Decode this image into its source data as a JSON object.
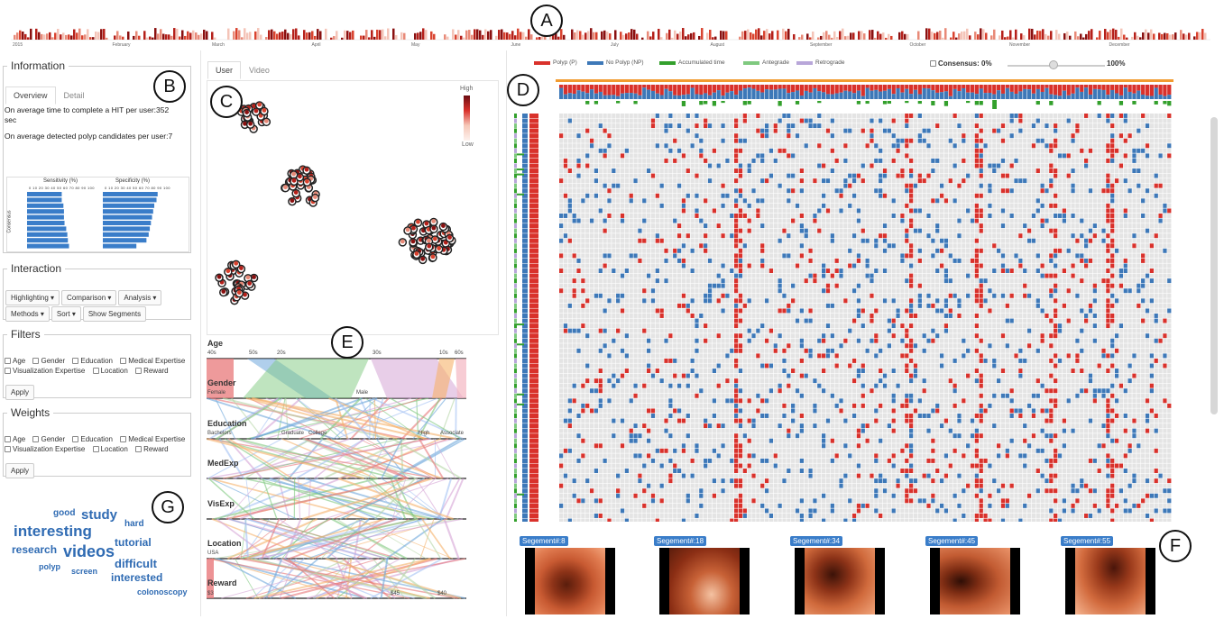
{
  "callouts": [
    "A",
    "B",
    "C",
    "D",
    "E",
    "F",
    "G"
  ],
  "timeline": {
    "months": [
      "2015",
      "February",
      "March",
      "April",
      "May",
      "June",
      "July",
      "August",
      "September",
      "October",
      "November",
      "December"
    ]
  },
  "information": {
    "legend": "Information",
    "tabs": [
      "Overview",
      "Detail"
    ],
    "line1": "On average time to complete a HIT per user:352",
    "line1b": "sec",
    "line2": "On average detected polyp candidates per user:7",
    "sensitivity_title": "Sensitivity (%)",
    "specificity_title": "Specificity (%)",
    "axis_ticks": "0 10 20 30 40 50 60 70 80 90 100",
    "consensus_label": "Consensus",
    "chart_data": {
      "type": "bar",
      "series": [
        {
          "name": "Sensitivity (%)",
          "values": [
            62,
            62,
            65,
            66,
            66,
            67,
            70,
            72,
            73,
            75
          ]
        },
        {
          "name": "Specificity (%)",
          "values": [
            98,
            96,
            92,
            90,
            88,
            86,
            84,
            82,
            78,
            60
          ]
        }
      ]
    }
  },
  "interaction": {
    "legend": "Interaction",
    "buttons": [
      "Highlighting ▾",
      "Comparison ▾",
      "Analysis ▾",
      "Methods ▾",
      "Sort ▾",
      "Show Segments"
    ]
  },
  "filters": {
    "legend": "Filters",
    "row1": [
      "Age",
      "Gender",
      "Education",
      "Medical Expertise"
    ],
    "row2": [
      "Visualization Expertise",
      "Location",
      "Reward"
    ],
    "apply": "Apply"
  },
  "weights": {
    "legend": "Weights",
    "row1": [
      "Age",
      "Gender",
      "Education",
      "Medical Expertise"
    ],
    "row2": [
      "Visualization Expertise",
      "Location",
      "Reward"
    ],
    "apply": "Apply"
  },
  "wordcloud": [
    "good",
    "study",
    "interesting",
    "hard",
    "research",
    "videos",
    "tutorial",
    "polyp",
    "screen",
    "difficult",
    "interested",
    "colonoscopy"
  ],
  "user_view": {
    "tabs": [
      "User",
      "Video"
    ],
    "scale_high": "High",
    "scale_low": "Low"
  },
  "parallel_sets": {
    "axes": [
      "Age",
      "Gender",
      "Education",
      "MedExp",
      "VisExp",
      "Location",
      "Reward"
    ],
    "age_values": [
      "40s",
      "50s",
      "20s",
      "30s",
      "10s",
      "60s"
    ],
    "gender_values": [
      "Female",
      "Male"
    ],
    "education_values": [
      "Bachelors",
      "Graduate",
      "College",
      "High",
      "Associate"
    ],
    "location_values": [
      "USA"
    ],
    "reward_values": [
      "$3",
      "$45",
      "$40"
    ]
  },
  "matrix": {
    "legend": [
      {
        "label": "Polyp (P)",
        "color": "#d9312b"
      },
      {
        "label": "No Polyp (NP)",
        "color": "#3d78b8"
      },
      {
        "label": "Accumulated time",
        "color": "#33a02c"
      },
      {
        "label": "Antegrade",
        "color": "#7fc97f"
      },
      {
        "label": "Retrograde",
        "color": "#b8a6d9"
      }
    ],
    "consensus_label": "Consensus: 0%",
    "consensus_max": "100%"
  },
  "segments": [
    "Segement#:8",
    "Segement#:18",
    "Segement#:34",
    "Segement#:45",
    "Segement#:55"
  ],
  "colors": {
    "polyp": "#d9312b",
    "nopolyp": "#3d78b8",
    "grid": "#e4e4e4",
    "accent": "#f29b30"
  }
}
